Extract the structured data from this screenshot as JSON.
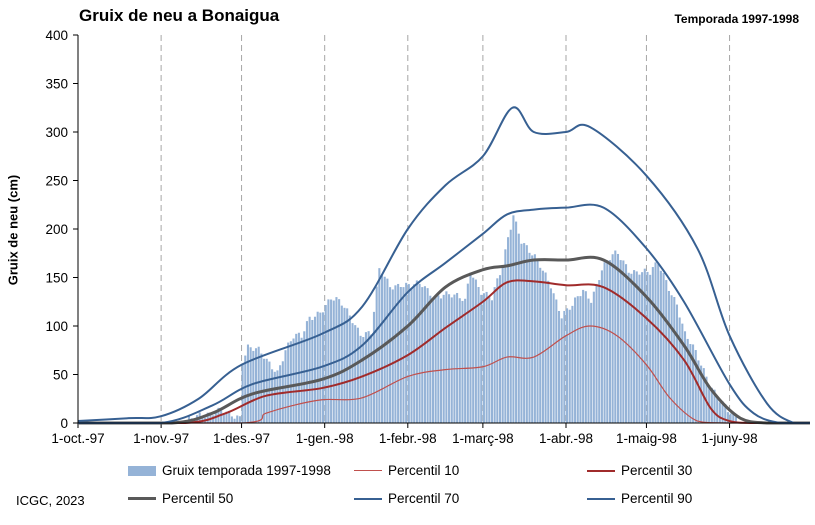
{
  "chart_data": {
    "type": "area",
    "title": "Gruix de neu a Bonaigua",
    "subtitle": "Temporada 1997-1998",
    "ylabel": "Gruix de neu (cm)",
    "xlabel": "",
    "ylim": [
      0,
      400
    ],
    "yticks": [
      0,
      50,
      100,
      150,
      200,
      250,
      300,
      350,
      400
    ],
    "x_range": [
      "1997-10-01",
      "1998-07-01"
    ],
    "x_ticks": [
      {
        "date": "1997-10-01",
        "label": "1-oct.-97"
      },
      {
        "date": "1997-11-01",
        "label": "1-nov.-97"
      },
      {
        "date": "1997-12-01",
        "label": "1-des.-97"
      },
      {
        "date": "1998-01-01",
        "label": "1-gen.-98"
      },
      {
        "date": "1998-02-01",
        "label": "1-febr.-98"
      },
      {
        "date": "1998-03-01",
        "label": "1-març-98"
      },
      {
        "date": "1998-04-01",
        "label": "1-abr.-98"
      },
      {
        "date": "1998-05-01",
        "label": "1-maig-98"
      },
      {
        "date": "1998-06-01",
        "label": "1-juny-98"
      }
    ],
    "grid": "vertical-dashed",
    "legend_position": "bottom",
    "series": [
      {
        "name": "Gruix temporada 1997-1998",
        "kind": "bar",
        "color": "#95b3d7",
        "points": [
          [
            "1997-11-10",
            0
          ],
          [
            "1997-11-15",
            12
          ],
          [
            "1997-11-20",
            10
          ],
          [
            "1997-11-25",
            8
          ],
          [
            "1997-11-30",
            9
          ],
          [
            "1997-12-01",
            68
          ],
          [
            "1997-12-03",
            80
          ],
          [
            "1997-12-07",
            72
          ],
          [
            "1997-12-10",
            62
          ],
          [
            "1997-12-14",
            55
          ],
          [
            "1997-12-17",
            78
          ],
          [
            "1997-12-20",
            88
          ],
          [
            "1997-12-23",
            86
          ],
          [
            "1997-12-26",
            108
          ],
          [
            "1997-12-30",
            118
          ],
          [
            "1998-01-03",
            128
          ],
          [
            "1998-01-07",
            120
          ],
          [
            "1998-01-11",
            108
          ],
          [
            "1998-01-14",
            95
          ],
          [
            "1998-01-18",
            92
          ],
          [
            "1998-01-21",
            155
          ],
          [
            "1998-01-25",
            142
          ],
          [
            "1998-01-29",
            146
          ],
          [
            "1998-02-02",
            140
          ],
          [
            "1998-02-06",
            140
          ],
          [
            "1998-02-10",
            133
          ],
          [
            "1998-02-14",
            135
          ],
          [
            "1998-02-18",
            128
          ],
          [
            "1998-02-22",
            125
          ],
          [
            "1998-02-24",
            160
          ],
          [
            "1998-02-28",
            138
          ],
          [
            "1998-03-04",
            126
          ],
          [
            "1998-03-08",
            160
          ],
          [
            "1998-03-10",
            192
          ],
          [
            "1998-03-12",
            218
          ],
          [
            "1998-03-15",
            190
          ],
          [
            "1998-03-18",
            175
          ],
          [
            "1998-03-22",
            160
          ],
          [
            "1998-03-26",
            145
          ],
          [
            "1998-03-30",
            112
          ],
          [
            "1998-04-03",
            118
          ],
          [
            "1998-04-07",
            136
          ],
          [
            "1998-04-10",
            130
          ],
          [
            "1998-04-14",
            160
          ],
          [
            "1998-04-18",
            170
          ],
          [
            "1998-04-20",
            172
          ],
          [
            "1998-04-24",
            160
          ],
          [
            "1998-04-28",
            158
          ],
          [
            "1998-05-02",
            152
          ],
          [
            "1998-05-05",
            163
          ],
          [
            "1998-05-08",
            148
          ],
          [
            "1998-05-12",
            125
          ],
          [
            "1998-05-15",
            90
          ],
          [
            "1998-05-19",
            70
          ],
          [
            "1998-05-23",
            50
          ],
          [
            "1998-05-27",
            30
          ],
          [
            "1998-05-31",
            10
          ],
          [
            "1998-06-04",
            0
          ]
        ]
      },
      {
        "name": "Percentil 10",
        "kind": "line",
        "color": "#c0504d",
        "points": [
          [
            "1997-10-01",
            0
          ],
          [
            "1997-12-01",
            0
          ],
          [
            "1997-12-10",
            10
          ],
          [
            "1997-12-20",
            18
          ],
          [
            "1997-12-31",
            24
          ],
          [
            "1998-01-15",
            26
          ],
          [
            "1998-02-01",
            48
          ],
          [
            "1998-02-15",
            55
          ],
          [
            "1998-03-01",
            58
          ],
          [
            "1998-03-10",
            68
          ],
          [
            "1998-03-20",
            68
          ],
          [
            "1998-04-01",
            90
          ],
          [
            "1998-04-10",
            100
          ],
          [
            "1998-04-20",
            90
          ],
          [
            "1998-05-01",
            60
          ],
          [
            "1998-05-10",
            25
          ],
          [
            "1998-05-20",
            2
          ],
          [
            "1998-05-31",
            0
          ],
          [
            "1998-07-01",
            0
          ]
        ]
      },
      {
        "name": "Percentil 30",
        "kind": "line",
        "color": "#a02b2b",
        "points": [
          [
            "1997-10-01",
            0
          ],
          [
            "1997-11-10",
            0
          ],
          [
            "1997-11-25",
            10
          ],
          [
            "1997-12-10",
            28
          ],
          [
            "1997-12-31",
            36
          ],
          [
            "1998-01-15",
            48
          ],
          [
            "1998-02-01",
            70
          ],
          [
            "1998-02-15",
            98
          ],
          [
            "1998-03-01",
            125
          ],
          [
            "1998-03-10",
            145
          ],
          [
            "1998-03-20",
            146
          ],
          [
            "1998-04-01",
            142
          ],
          [
            "1998-04-15",
            140
          ],
          [
            "1998-05-01",
            108
          ],
          [
            "1998-05-15",
            65
          ],
          [
            "1998-05-25",
            15
          ],
          [
            "1998-06-01",
            2
          ],
          [
            "1998-06-10",
            0
          ],
          [
            "1998-07-01",
            0
          ]
        ]
      },
      {
        "name": "Percentil 50",
        "kind": "line",
        "color": "#595959",
        "points": [
          [
            "1997-10-01",
            0
          ],
          [
            "1997-11-05",
            0
          ],
          [
            "1997-11-20",
            10
          ],
          [
            "1997-12-05",
            30
          ],
          [
            "1997-12-31",
            45
          ],
          [
            "1998-01-15",
            65
          ],
          [
            "1998-02-01",
            100
          ],
          [
            "1998-02-15",
            140
          ],
          [
            "1998-03-01",
            158
          ],
          [
            "1998-03-10",
            162
          ],
          [
            "1998-03-20",
            168
          ],
          [
            "1998-04-01",
            168
          ],
          [
            "1998-04-15",
            168
          ],
          [
            "1998-05-01",
            130
          ],
          [
            "1998-05-15",
            80
          ],
          [
            "1998-05-25",
            35
          ],
          [
            "1998-06-05",
            5
          ],
          [
            "1998-06-15",
            0
          ],
          [
            "1998-07-01",
            0
          ]
        ]
      },
      {
        "name": "Percentil 70",
        "kind": "line",
        "color": "#376092",
        "points": [
          [
            "1997-10-01",
            0
          ],
          [
            "1997-11-01",
            0
          ],
          [
            "1997-11-20",
            18
          ],
          [
            "1997-12-05",
            40
          ],
          [
            "1997-12-31",
            58
          ],
          [
            "1998-01-15",
            80
          ],
          [
            "1998-02-01",
            135
          ],
          [
            "1998-02-15",
            165
          ],
          [
            "1998-03-01",
            195
          ],
          [
            "1998-03-10",
            215
          ],
          [
            "1998-03-20",
            220
          ],
          [
            "1998-04-01",
            222
          ],
          [
            "1998-04-15",
            222
          ],
          [
            "1998-05-01",
            180
          ],
          [
            "1998-05-15",
            125
          ],
          [
            "1998-06-01",
            40
          ],
          [
            "1998-06-10",
            10
          ],
          [
            "1998-06-20",
            0
          ],
          [
            "1998-07-01",
            0
          ]
        ]
      },
      {
        "name": "Percentil 90",
        "kind": "line",
        "color": "#376092",
        "points": [
          [
            "1997-10-01",
            2
          ],
          [
            "1997-10-20",
            5
          ],
          [
            "1997-11-01",
            7
          ],
          [
            "1997-11-15",
            25
          ],
          [
            "1997-12-01",
            60
          ],
          [
            "1997-12-31",
            92
          ],
          [
            "1998-01-15",
            120
          ],
          [
            "1998-02-01",
            200
          ],
          [
            "1998-02-15",
            245
          ],
          [
            "1998-03-01",
            275
          ],
          [
            "1998-03-12",
            325
          ],
          [
            "1998-03-20",
            300
          ],
          [
            "1998-04-01",
            300
          ],
          [
            "1998-04-10",
            305
          ],
          [
            "1998-05-01",
            255
          ],
          [
            "1998-05-20",
            180
          ],
          [
            "1998-06-01",
            90
          ],
          [
            "1998-06-15",
            20
          ],
          [
            "1998-06-25",
            0
          ],
          [
            "1998-07-01",
            0
          ]
        ]
      }
    ]
  },
  "credit": "ICGC, 2023"
}
